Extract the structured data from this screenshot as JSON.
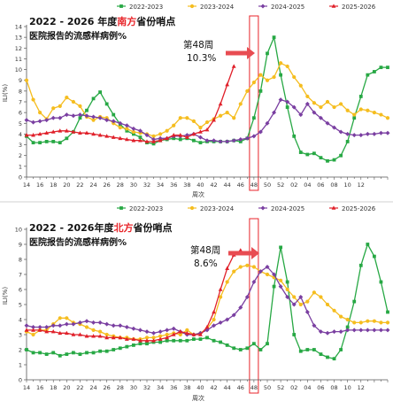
{
  "legend_labels": [
    "2022-2023",
    "2023-2024",
    "2024-2025",
    "2025-2026"
  ],
  "colors": {
    "2022-2023": "#27a844",
    "2023-2024": "#f5bd1f",
    "2024-2025": "#7a3fa1",
    "2025-2026": "#e0202a",
    "highlight": "#e8262b",
    "arrow": "#e84c52"
  },
  "x_tick_labels": [
    "14",
    "16",
    "18",
    "20",
    "22",
    "24",
    "26",
    "28",
    "30",
    "32",
    "34",
    "36",
    "38",
    "40",
    "42",
    "44",
    "46",
    "48",
    "50",
    "52",
    "02",
    "04",
    "06",
    "08",
    "10",
    "12"
  ],
  "chart_data": [
    {
      "type": "line",
      "title_prefix": "2022 - 2026 年度",
      "title_region": "南方",
      "title_suffix": "省份哨点",
      "subtitle": "医院报告的流感样病例%",
      "ylabel": "ILI(%)",
      "xlabel": "周次",
      "ylim": [
        0,
        14
      ],
      "y_ticks": [
        0,
        1,
        2,
        3,
        4,
        5,
        6,
        7,
        8,
        9,
        10,
        11,
        12,
        13,
        14
      ],
      "highlight_week": "48",
      "annotation": "第48周",
      "annotation_value": "10.3%",
      "series": [
        {
          "name": "2022-2023",
          "values": [
            3.8,
            3.2,
            3.2,
            3.3,
            3.3,
            3.2,
            3.6,
            4.2,
            5.5,
            6.2,
            7.3,
            7.9,
            6.8,
            5.8,
            4.9,
            4.3,
            4.0,
            3.7,
            3.2,
            3.1,
            3.4,
            3.5,
            3.6,
            3.5,
            3.6,
            3.4,
            3.2,
            3.3,
            3.3,
            3.3,
            3.3,
            3.4,
            3.3,
            3.6,
            5.5,
            8.0,
            11.5,
            13.0,
            9.5,
            6.5,
            3.8,
            2.3,
            2.1,
            2.2,
            1.8,
            1.5,
            1.6,
            2.0,
            3.3,
            5.5,
            7.5,
            9.5,
            9.8,
            10.2,
            10.2
          ]
        },
        {
          "name": "2023-2024",
          "values": [
            9.0,
            7.2,
            6.0,
            5.4,
            6.4,
            6.6,
            7.4,
            7.0,
            6.6,
            5.6,
            5.3,
            5.6,
            5.5,
            5.0,
            4.6,
            4.5,
            4.2,
            4.1,
            4.0,
            3.8,
            4.0,
            4.3,
            4.8,
            5.5,
            5.5,
            5.2,
            4.6,
            5.1,
            5.4,
            5.7,
            6.0,
            5.5,
            6.8,
            8.0,
            8.8,
            9.5,
            9.0,
            9.3,
            10.6,
            10.3,
            9.3,
            8.5,
            7.5,
            6.9,
            6.5,
            7.0,
            6.5,
            6.8,
            6.2,
            5.8,
            6.3,
            6.2,
            6.0,
            5.8,
            5.5
          ]
        },
        {
          "name": "2024-2025",
          "values": [
            5.3,
            5.1,
            5.2,
            5.3,
            5.5,
            5.5,
            5.8,
            5.7,
            5.8,
            5.7,
            5.6,
            5.5,
            5.3,
            5.2,
            5.0,
            4.8,
            4.5,
            4.3,
            3.9,
            3.5,
            3.6,
            3.6,
            3.8,
            3.8,
            3.9,
            4.0,
            3.7,
            3.4,
            3.4,
            3.3,
            3.3,
            3.4,
            3.5,
            3.6,
            3.8,
            4.2,
            5.0,
            6.0,
            7.2,
            7.0,
            6.5,
            5.8,
            6.8,
            6.0,
            5.5,
            5.0,
            4.6,
            4.2,
            4.0,
            3.9,
            3.9,
            4.0,
            4.0,
            4.1,
            4.1
          ]
        },
        {
          "name": "2025-2026",
          "values": [
            3.9,
            3.9,
            4.0,
            4.1,
            4.2,
            4.3,
            4.3,
            4.2,
            4.1,
            4.1,
            4.0,
            3.9,
            3.8,
            3.7,
            3.6,
            3.5,
            3.4,
            3.4,
            3.3,
            3.3,
            3.4,
            3.6,
            3.9,
            3.9,
            3.7,
            4.0,
            4.2,
            4.4,
            5.3,
            6.8,
            8.6,
            10.3
          ]
        }
      ]
    },
    {
      "type": "line",
      "title_prefix": "2022 - 2026年度",
      "title_region": "北方",
      "title_suffix": "省份哨点",
      "subtitle": "医院报告的流感样病例%",
      "ylabel": "ILI(%)",
      "xlabel": "周次",
      "ylim": [
        0,
        10
      ],
      "y_ticks": [
        0,
        1,
        2,
        3,
        4,
        5,
        6,
        7,
        8,
        9,
        10
      ],
      "highlight_week": "48",
      "annotation": "第48周",
      "annotation_value": "8.6%",
      "series": [
        {
          "name": "2022-2023",
          "values": [
            2.0,
            1.8,
            1.8,
            1.7,
            1.8,
            1.6,
            1.7,
            1.8,
            1.7,
            1.8,
            1.8,
            1.9,
            1.9,
            2.0,
            2.1,
            2.2,
            2.3,
            2.4,
            2.4,
            2.5,
            2.5,
            2.6,
            2.6,
            2.6,
            2.6,
            2.7,
            2.7,
            2.8,
            2.6,
            2.5,
            2.3,
            2.1,
            2.0,
            2.1,
            2.4,
            2.0,
            2.4,
            6.2,
            8.8,
            6.5,
            3.0,
            1.9,
            2.0,
            2.0,
            1.7,
            1.5,
            1.4,
            2.0,
            3.5,
            5.2,
            7.6,
            9.0,
            8.2,
            6.5,
            4.5
          ]
        },
        {
          "name": "2023-2024",
          "values": [
            3.2,
            3.0,
            3.3,
            3.3,
            3.7,
            4.1,
            4.1,
            3.8,
            3.7,
            3.5,
            3.3,
            3.2,
            3.0,
            2.9,
            2.8,
            2.8,
            2.7,
            2.7,
            2.8,
            2.8,
            2.9,
            3.0,
            3.1,
            3.0,
            3.3,
            3.0,
            3.1,
            3.4,
            4.0,
            5.5,
            6.5,
            7.2,
            7.5,
            7.6,
            7.5,
            7.2,
            7.0,
            6.8,
            6.6,
            6.0,
            5.5,
            5.0,
            5.2,
            5.8,
            5.5,
            5.0,
            4.6,
            4.2,
            4.0,
            3.8,
            3.8,
            3.9,
            3.9,
            3.8,
            3.8
          ]
        },
        {
          "name": "2024-2025",
          "values": [
            3.6,
            3.5,
            3.5,
            3.5,
            3.6,
            3.6,
            3.7,
            3.7,
            3.8,
            3.9,
            3.8,
            3.8,
            3.7,
            3.6,
            3.6,
            3.5,
            3.4,
            3.3,
            3.2,
            3.1,
            3.2,
            3.3,
            3.4,
            3.2,
            3.0,
            3.0,
            3.1,
            3.3,
            3.6,
            3.8,
            4.0,
            4.3,
            4.8,
            5.5,
            6.5,
            7.2,
            7.5,
            7.0,
            6.2,
            5.5,
            5.0,
            5.5,
            4.5,
            3.6,
            3.2,
            3.1,
            3.2,
            3.2,
            3.3,
            3.3,
            3.3,
            3.3,
            3.3,
            3.3,
            3.3
          ]
        },
        {
          "name": "2025-2026",
          "values": [
            3.3,
            3.3,
            3.3,
            3.2,
            3.2,
            3.1,
            3.1,
            3.0,
            3.0,
            2.9,
            2.9,
            2.9,
            2.8,
            2.8,
            2.8,
            2.7,
            2.7,
            2.6,
            2.6,
            2.6,
            2.7,
            2.8,
            3.0,
            3.2,
            3.1,
            3.0,
            3.0,
            3.5,
            4.5,
            6.0,
            7.4,
            8.3,
            8.6
          ]
        }
      ]
    }
  ]
}
